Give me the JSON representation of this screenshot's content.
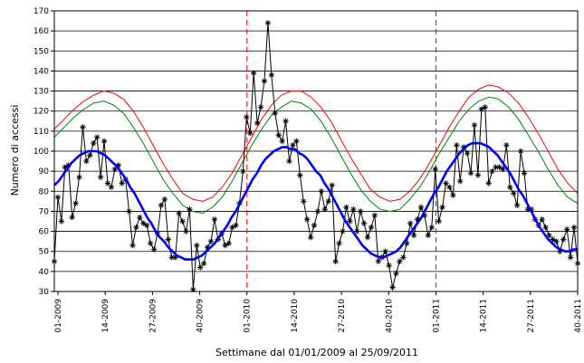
{
  "chart_data": {
    "type": "line",
    "title": "",
    "xlabel": "Settimane dal 01/01/2009 al 25/09/2011",
    "ylabel": "Numero di accessi",
    "ylim": [
      30,
      170
    ],
    "yticks": [
      30,
      40,
      50,
      60,
      70,
      80,
      90,
      100,
      110,
      120,
      130,
      140,
      150,
      160,
      170
    ],
    "xlim": [
      0,
      144
    ],
    "xtick_labels": [
      {
        "x": 1,
        "label": "01-2009"
      },
      {
        "x": 14,
        "label": "14-2009"
      },
      {
        "x": 27,
        "label": "27-2009"
      },
      {
        "x": 40,
        "label": "40-2009"
      },
      {
        "x": 53,
        "label": "01-2010"
      },
      {
        "x": 66,
        "label": "14-2010"
      },
      {
        "x": 79,
        "label": "27-2010"
      },
      {
        "x": 92,
        "label": "40-2010"
      },
      {
        "x": 105,
        "label": "01-2011"
      },
      {
        "x": 118,
        "label": "14-2011"
      },
      {
        "x": 131,
        "label": "27-2011"
      },
      {
        "x": 144,
        "label": "40-2011"
      }
    ],
    "vlines": [
      53,
      105
    ],
    "grid": "horizontal",
    "legend": "none",
    "colors": {
      "observed": "#000000",
      "trend": "#0000ff",
      "upper": "#ff0000",
      "middle": "#008000",
      "vline": "#ff0000",
      "grid": "#000000"
    },
    "series": [
      {
        "id": "observed",
        "marker": "asterisk",
        "values": [
          45,
          77,
          65,
          92,
          93,
          67,
          74,
          87,
          112,
          95,
          98,
          104,
          107,
          87,
          105,
          84,
          82,
          91,
          93,
          84,
          86,
          70,
          53,
          62,
          67,
          64,
          63,
          54,
          51,
          59,
          73,
          76,
          56,
          47,
          47,
          69,
          65,
          60,
          71,
          31,
          53,
          42,
          44,
          52,
          55,
          66,
          56,
          59,
          53,
          54,
          62,
          63,
          74,
          90,
          117,
          109,
          139,
          114,
          122,
          135,
          164,
          138,
          119,
          108,
          105,
          115,
          95,
          103,
          105,
          88,
          75,
          66,
          57,
          63,
          70,
          80,
          71,
          75,
          83,
          45,
          54,
          60,
          72,
          65,
          71,
          60,
          70,
          64,
          57,
          62,
          68,
          45,
          47,
          50,
          43,
          32,
          39,
          45,
          47,
          54,
          64,
          58,
          66,
          72,
          68,
          58,
          62,
          91,
          65,
          72,
          84,
          82,
          78,
          103,
          85,
          102,
          99,
          89,
          113,
          88,
          121,
          122,
          84,
          90,
          92,
          92,
          91,
          103,
          82,
          79,
          73,
          100,
          89,
          71,
          71,
          66,
          63,
          66,
          62,
          58,
          56,
          55,
          50,
          56,
          61,
          47,
          62,
          44
        ]
      },
      {
        "id": "trend",
        "values": [
          83,
          85,
          88,
          91,
          94,
          96,
          98,
          99,
          100,
          100,
          100,
          99,
          98,
          96,
          94,
          92,
          89,
          86,
          82,
          79,
          75,
          71,
          67,
          64,
          60,
          57,
          55,
          52,
          50,
          48,
          47,
          46,
          46,
          46,
          47,
          48,
          50,
          52,
          54,
          57,
          60,
          63,
          67,
          70,
          74,
          78,
          82,
          86,
          89,
          93,
          96,
          98,
          100,
          101,
          102,
          102,
          101,
          101,
          99,
          98,
          96,
          93,
          90,
          88,
          84,
          81,
          77,
          73,
          69,
          65,
          62,
          59,
          56,
          53,
          51,
          49,
          48,
          47,
          47,
          48,
          49,
          50,
          52,
          55,
          58,
          61,
          64,
          67,
          71,
          75,
          79,
          82,
          86,
          90,
          93,
          96,
          99,
          101,
          103,
          104,
          104,
          104,
          103,
          102,
          100,
          98,
          95,
          92,
          89,
          85,
          81,
          78,
          74,
          70,
          66,
          62,
          59,
          56,
          54,
          52,
          51,
          50,
          50,
          51,
          51
        ]
      },
      {
        "id": "upper",
        "values": [
          111,
          116,
          121,
          125,
          128,
          130,
          129,
          126,
          120,
          112,
          103,
          94,
          86,
          79,
          76,
          75,
          77,
          82,
          89,
          98,
          107,
          116,
          123,
          128,
          130,
          130,
          127,
          122,
          115,
          106,
          97,
          89,
          81,
          77,
          75,
          76,
          80,
          86,
          94,
          103,
          112,
          120,
          127,
          131,
          133,
          132,
          129,
          124,
          117,
          109,
          100,
          91,
          84,
          79
        ]
      },
      {
        "id": "middle",
        "values": [
          107,
          112,
          117,
          121,
          124,
          125,
          123,
          119,
          112,
          104,
          95,
          86,
          79,
          73,
          70,
          69,
          72,
          77,
          85,
          94,
          103,
          111,
          118,
          122,
          125,
          124,
          121,
          115,
          107,
          98,
          89,
          81,
          75,
          71,
          70,
          71,
          76,
          82,
          90,
          99,
          107,
          115,
          121,
          125,
          127,
          126,
          122,
          116,
          108,
          100,
          91,
          83,
          77,
          74
        ]
      }
    ]
  }
}
